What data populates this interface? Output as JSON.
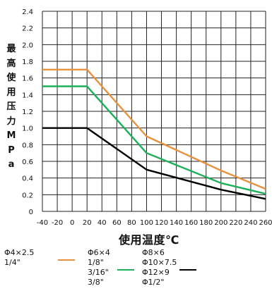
{
  "chart_data": {
    "type": "line",
    "xlabel": "使用温度℃",
    "ylabel": "最高使用压力MPa",
    "x_ticks": [
      "-40",
      "-20",
      "0",
      "20",
      "40",
      "60",
      "80",
      "100",
      "120",
      "140",
      "160",
      "180",
      "200",
      "220",
      "240",
      "260"
    ],
    "y_ticks": [
      "0",
      "0.2",
      "0.4",
      "0.6",
      "0.8",
      "1.0",
      "1.2",
      "1.4",
      "1.6",
      "1.8",
      "2.0",
      "2.2",
      "2.4"
    ],
    "xlim": [
      -40,
      260
    ],
    "ylim": [
      0,
      2.4
    ],
    "grid": true,
    "legend_position": "bottom",
    "series": [
      {
        "label_lines": [
          "Φ4×2.5",
          "1/4\""
        ],
        "color": "#e8913f",
        "points": [
          [
            -40,
            1.7
          ],
          [
            20,
            1.7
          ],
          [
            100,
            0.9
          ],
          [
            200,
            0.49
          ],
          [
            260,
            0.27
          ]
        ]
      },
      {
        "label_lines": [
          "Φ6×4",
          "1/8\"",
          "3/16\"",
          "3/8\""
        ],
        "color": "#1eaf5a",
        "points": [
          [
            -40,
            1.5
          ],
          [
            20,
            1.5
          ],
          [
            100,
            0.7
          ],
          [
            200,
            0.34
          ],
          [
            260,
            0.21
          ]
        ]
      },
      {
        "label_lines": [
          "Φ8×6",
          "Φ10×7.5",
          "Φ12×9",
          "Φ1/2\""
        ],
        "color": "#000000",
        "points": [
          [
            -40,
            1.0
          ],
          [
            20,
            1.0
          ],
          [
            100,
            0.5
          ],
          [
            200,
            0.26
          ],
          [
            260,
            0.15
          ]
        ]
      }
    ]
  }
}
